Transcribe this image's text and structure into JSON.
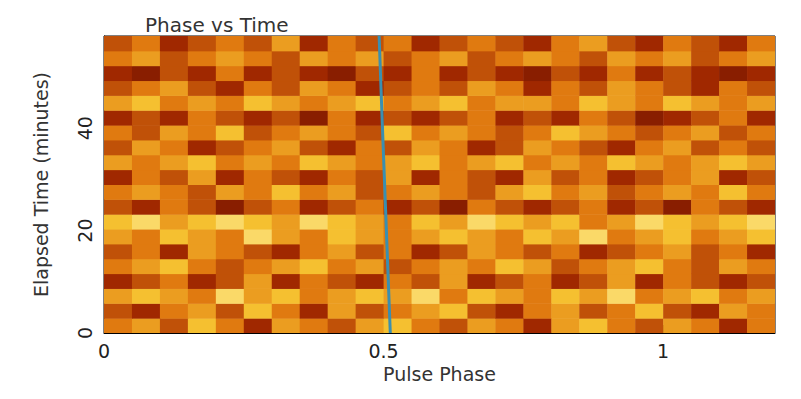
{
  "chart_data": {
    "type": "heatmap",
    "title": "Phase vs Time",
    "xlabel": "Pulse Phase",
    "ylabel": "Elapsed Time (minutes)",
    "xlim": [
      0,
      1.2
    ],
    "ylim": [
      0,
      58
    ],
    "xticks": [
      0,
      0.5,
      1
    ],
    "yticks": [
      0,
      20,
      40
    ],
    "grid": false,
    "x_edges": [
      0,
      0.05,
      0.1,
      0.15,
      0.2,
      0.25,
      0.3,
      0.35,
      0.4,
      0.45,
      0.5,
      0.55,
      0.6,
      0.65,
      0.7,
      0.75,
      0.8,
      0.85,
      0.9,
      0.95,
      1,
      1.05,
      1.1,
      1.15,
      1.2
    ],
    "y_edges": [
      0,
      2.9,
      5.8,
      8.7,
      11.6,
      14.5,
      17.4,
      20.3,
      23.2,
      26.1,
      29,
      31.9,
      34.8,
      37.7,
      40.6,
      43.5,
      46.4,
      49.3,
      52.2,
      55.1,
      58
    ],
    "color_range": [
      0,
      9
    ],
    "cells": [
      [
        5,
        6,
        4,
        7,
        5,
        3,
        6,
        5,
        4,
        6,
        7,
        5,
        4,
        6,
        5,
        3,
        6,
        7,
        5,
        4,
        6,
        5,
        3,
        5
      ],
      [
        4,
        3,
        5,
        6,
        4,
        7,
        5,
        3,
        6,
        4,
        5,
        6,
        7,
        4,
        3,
        5,
        6,
        4,
        5,
        7,
        4,
        3,
        6,
        5
      ],
      [
        6,
        7,
        6,
        5,
        8,
        6,
        7,
        5,
        6,
        7,
        6,
        8,
        5,
        7,
        6,
        5,
        7,
        6,
        8,
        5,
        6,
        7,
        5,
        6
      ],
      [
        3,
        4,
        5,
        3,
        4,
        6,
        3,
        5,
        4,
        3,
        5,
        4,
        6,
        3,
        4,
        5,
        3,
        4,
        6,
        3,
        5,
        4,
        3,
        4
      ],
      [
        5,
        6,
        7,
        5,
        4,
        5,
        6,
        7,
        5,
        6,
        4,
        5,
        6,
        5,
        7,
        6,
        4,
        5,
        6,
        7,
        5,
        4,
        6,
        5
      ],
      [
        4,
        5,
        3,
        6,
        5,
        4,
        3,
        5,
        6,
        4,
        5,
        3,
        4,
        6,
        5,
        4,
        5,
        3,
        4,
        5,
        6,
        4,
        5,
        3
      ],
      [
        6,
        5,
        7,
        6,
        5,
        8,
        6,
        5,
        7,
        6,
        5,
        6,
        7,
        6,
        5,
        7,
        6,
        8,
        5,
        6,
        7,
        5,
        6,
        7
      ],
      [
        7,
        8,
        6,
        7,
        8,
        7,
        6,
        8,
        7,
        6,
        5,
        7,
        6,
        8,
        7,
        6,
        7,
        5,
        6,
        8,
        7,
        6,
        7,
        8
      ],
      [
        4,
        3,
        5,
        4,
        2,
        4,
        5,
        3,
        4,
        5,
        3,
        4,
        2,
        5,
        4,
        3,
        4,
        5,
        3,
        4,
        2,
        5,
        4,
        3
      ],
      [
        5,
        6,
        5,
        4,
        6,
        5,
        7,
        5,
        6,
        4,
        5,
        6,
        5,
        4,
        6,
        7,
        5,
        6,
        4,
        5,
        6,
        5,
        7,
        5
      ],
      [
        3,
        5,
        4,
        6,
        3,
        5,
        4,
        3,
        5,
        4,
        6,
        3,
        5,
        4,
        3,
        6,
        4,
        5,
        3,
        4,
        5,
        6,
        3,
        4
      ],
      [
        6,
        5,
        6,
        7,
        5,
        6,
        5,
        7,
        6,
        5,
        6,
        7,
        5,
        6,
        7,
        5,
        6,
        5,
        7,
        6,
        5,
        6,
        7,
        6
      ],
      [
        4,
        6,
        5,
        3,
        4,
        5,
        6,
        4,
        3,
        5,
        4,
        6,
        5,
        3,
        4,
        6,
        5,
        4,
        3,
        5,
        6,
        4,
        5,
        4
      ],
      [
        5,
        4,
        6,
        5,
        7,
        4,
        5,
        6,
        5,
        4,
        7,
        5,
        6,
        5,
        4,
        5,
        7,
        6,
        5,
        4,
        5,
        6,
        4,
        5
      ],
      [
        3,
        4,
        3,
        5,
        4,
        3,
        4,
        2,
        5,
        3,
        4,
        3,
        4,
        5,
        3,
        4,
        3,
        5,
        4,
        2,
        3,
        4,
        5,
        3
      ],
      [
        6,
        7,
        5,
        6,
        5,
        7,
        6,
        5,
        6,
        7,
        5,
        6,
        7,
        5,
        6,
        6,
        5,
        7,
        6,
        5,
        7,
        6,
        5,
        6
      ],
      [
        4,
        5,
        6,
        4,
        3,
        5,
        4,
        6,
        5,
        3,
        4,
        5,
        4,
        6,
        5,
        3,
        5,
        4,
        6,
        5,
        4,
        3,
        5,
        4
      ],
      [
        3,
        2,
        4,
        3,
        5,
        3,
        4,
        3,
        2,
        4,
        3,
        5,
        3,
        4,
        3,
        2,
        4,
        3,
        5,
        3,
        4,
        3,
        2,
        3
      ],
      [
        5,
        6,
        4,
        5,
        6,
        5,
        4,
        6,
        5,
        6,
        4,
        5,
        6,
        4,
        5,
        6,
        5,
        4,
        6,
        5,
        6,
        4,
        5,
        6
      ],
      [
        4,
        5,
        3,
        4,
        5,
        4,
        6,
        3,
        5,
        4,
        5,
        3,
        4,
        5,
        4,
        3,
        5,
        6,
        4,
        3,
        5,
        4,
        3,
        5
      ]
    ],
    "series": [
      {
        "type": "line",
        "color": "#3a8fb0",
        "x": [
          0.512,
          0.505,
          0.498,
          0.492
        ],
        "y": [
          0,
          20,
          40,
          58
        ]
      }
    ]
  }
}
